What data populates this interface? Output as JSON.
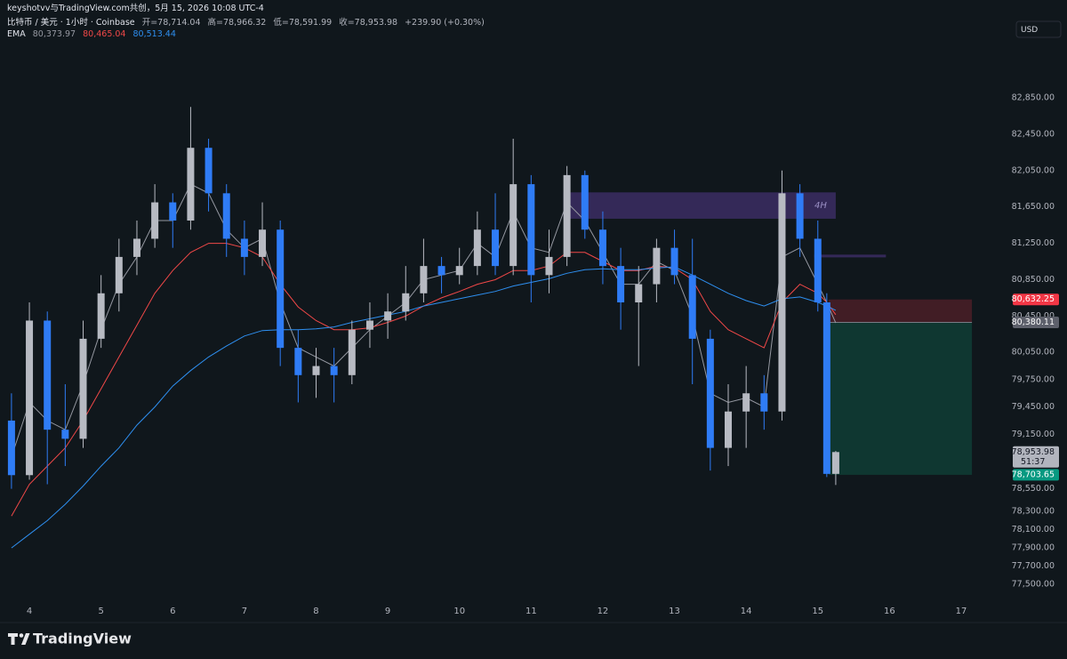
{
  "chart_data": {
    "type": "candlestick",
    "header": "keyshotvv与TradingView.com共创，5月 15, 2026 10:08 UTC-4",
    "legend": {
      "symbol": "比特币 / 美元 · 1小时 · Coinbase",
      "ohlc": [
        "开=78,714.04",
        "高=78,966.32",
        "低=78,591.99",
        "收=78,953.98"
      ],
      "change": "+239.90 (+0.30%)"
    },
    "currency": "USD",
    "brand": "TradingView",
    "x": [
      3.75,
      4,
      4.25,
      4.5,
      4.75,
      5,
      5.25,
      5.5,
      5.75,
      6,
      6.25,
      6.5,
      6.75,
      7,
      7.25,
      7.5,
      7.75,
      8,
      8.25,
      8.5,
      8.75,
      9,
      9.25,
      9.5,
      9.75,
      10,
      10.25,
      10.5,
      10.75,
      11,
      11.25,
      11.5,
      11.75,
      12,
      12.25,
      12.5,
      12.75,
      13,
      13.25,
      13.5,
      13.75,
      14,
      14.25,
      14.5,
      14.75,
      15,
      15.125,
      15.25
    ],
    "open": [
      79300,
      78700,
      80400,
      79200,
      79100,
      80200,
      80700,
      81100,
      81300,
      81700,
      81500,
      82300,
      81800,
      81300,
      81100,
      81400,
      80100,
      79800,
      79900,
      79800,
      80300,
      80400,
      80500,
      80700,
      81000,
      80900,
      81000,
      81400,
      81000,
      81900,
      80900,
      81100,
      82000,
      81400,
      81000,
      80600,
      80800,
      81200,
      80900,
      80200,
      79000,
      79400,
      79600,
      79400,
      81800,
      81300,
      80600,
      78714.04
    ],
    "high": [
      79600,
      80600,
      80500,
      79700,
      80400,
      80900,
      81300,
      81500,
      81900,
      81800,
      82750,
      82400,
      81900,
      81500,
      81700,
      81500,
      80300,
      80100,
      80100,
      80400,
      80600,
      80700,
      81000,
      81300,
      81100,
      81200,
      81600,
      81800,
      82400,
      82000,
      81400,
      82100,
      82050,
      81600,
      81200,
      81000,
      81300,
      81400,
      81300,
      80300,
      79700,
      79900,
      79800,
      82050,
      81900,
      81500,
      80700,
      78966.32
    ],
    "low": [
      78550,
      78650,
      78600,
      78800,
      79000,
      80100,
      80500,
      80900,
      81200,
      81200,
      81400,
      81600,
      81100,
      80900,
      81000,
      79900,
      79500,
      79550,
      79500,
      79700,
      80100,
      80200,
      80400,
      80600,
      80700,
      80800,
      80900,
      80900,
      80900,
      80600,
      80700,
      81000,
      81300,
      80800,
      80300,
      79900,
      80600,
      80800,
      79700,
      78750,
      78800,
      79000,
      79200,
      79300,
      81100,
      80500,
      78680,
      78591.99
    ],
    "close": [
      78700,
      80400,
      79200,
      79100,
      80200,
      80700,
      81100,
      81300,
      81700,
      81500,
      82300,
      81800,
      81300,
      81100,
      81400,
      80100,
      79800,
      79900,
      79800,
      80300,
      80400,
      80500,
      80700,
      81000,
      80900,
      81000,
      81400,
      81000,
      81900,
      80900,
      81100,
      82000,
      81400,
      81000,
      80600,
      80800,
      81200,
      80900,
      80200,
      79000,
      79400,
      79600,
      79400,
      81800,
      81300,
      80600,
      78714.04,
      78953.98
    ],
    "up_color": "#b7bac2",
    "down_color": "#2f7cf6",
    "ema": {
      "label": "EMA",
      "series": [
        {
          "color": "#9598a1",
          "value_label": "80,373.97",
          "values": [
            78900,
            79500,
            79300,
            79200,
            79700,
            80300,
            80800,
            81100,
            81500,
            81500,
            81900,
            81800,
            81400,
            81200,
            81300,
            80600,
            80100,
            80000,
            79900,
            80100,
            80300,
            80450,
            80600,
            80850,
            80900,
            80950,
            81250,
            81100,
            81600,
            81200,
            81150,
            81700,
            81500,
            81150,
            80800,
            80800,
            81050,
            80950,
            80450,
            79600,
            79500,
            79550,
            79450,
            81100,
            81200,
            80800,
            80600,
            80373.97
          ]
        },
        {
          "color": "#f04848",
          "value_label": "80,465.04",
          "values": [
            78250,
            78600,
            78800,
            79000,
            79300,
            79650,
            80000,
            80350,
            80700,
            80950,
            81150,
            81250,
            81250,
            81200,
            81100,
            80800,
            80550,
            80400,
            80300,
            80300,
            80320,
            80380,
            80450,
            80560,
            80650,
            80720,
            80800,
            80850,
            80950,
            80950,
            81000,
            81150,
            81150,
            81050,
            80950,
            80950,
            81000,
            80980,
            80850,
            80500,
            80300,
            80200,
            80100,
            80600,
            80800,
            80700,
            80600,
            80465.04
          ]
        },
        {
          "color": "#2e8ff0",
          "value_label": "80,513.44",
          "values": [
            77900,
            78050,
            78200,
            78380,
            78580,
            78800,
            79000,
            79250,
            79450,
            79680,
            79850,
            80000,
            80120,
            80230,
            80290,
            80300,
            80300,
            80310,
            80330,
            80380,
            80420,
            80460,
            80500,
            80560,
            80600,
            80640,
            80680,
            80720,
            80780,
            80820,
            80860,
            80920,
            80960,
            80970,
            80960,
            80960,
            80980,
            80990,
            80900,
            80800,
            80700,
            80620,
            80560,
            80640,
            80660,
            80600,
            80560,
            80513.44
          ]
        }
      ]
    },
    "zones": [
      {
        "label": "4H",
        "x": [
          11.45,
          15.25
        ],
        "y": [
          81520,
          81810
        ],
        "color": "#3b2d63"
      },
      {
        "x": [
          14.95,
          15.95
        ],
        "y": [
          81095,
          81125
        ],
        "color": "#3b2d63"
      }
    ],
    "price_labels": [
      {
        "value": 80632.25,
        "label": "80,632.25",
        "color": "#f23645"
      },
      {
        "value": 80380.11,
        "label": "80,380.11",
        "color": "#5d606b"
      },
      {
        "value": 78953.98,
        "label": "78,953.98",
        "sub": "51:37",
        "color": "#b2b5be"
      },
      {
        "value": 78703.65,
        "label": "78,703.65",
        "color": "#089981"
      }
    ],
    "position": {
      "x": [
        15.15,
        17.15
      ]
    },
    "xlim": [
      3.59,
      17.67
    ],
    "xticks": [
      4,
      5,
      6,
      7,
      8,
      9,
      10,
      11,
      12,
      13,
      14,
      15,
      16,
      17
    ],
    "ylim": [
      77128,
      83730
    ],
    "yticks": [
      {
        "value": 82850,
        "label": "82,850.00"
      },
      {
        "value": 82450,
        "label": "82,450.00"
      },
      {
        "value": 82050,
        "label": "82,050.00"
      },
      {
        "value": 81650,
        "label": "81,650.00"
      },
      {
        "value": 81250,
        "label": "81,250.00"
      },
      {
        "value": 80850,
        "label": "80,850.00"
      },
      {
        "value": 80450,
        "label": "80,450.00"
      },
      {
        "value": 80050,
        "label": "80,050.00"
      },
      {
        "value": 79750,
        "label": "79,750.00"
      },
      {
        "value": 79450,
        "label": "79,450.00"
      },
      {
        "value": 79150,
        "label": "79,150.00"
      },
      {
        "value": 78550,
        "label": "78,550.00"
      },
      {
        "value": 78300,
        "label": "78,300.00"
      },
      {
        "value": 78100,
        "label": "78,100.00"
      },
      {
        "value": 77900,
        "label": "77,900.00"
      },
      {
        "value": 77700,
        "label": "77,700.00"
      },
      {
        "value": 77500,
        "label": "77,500.00"
      }
    ]
  }
}
